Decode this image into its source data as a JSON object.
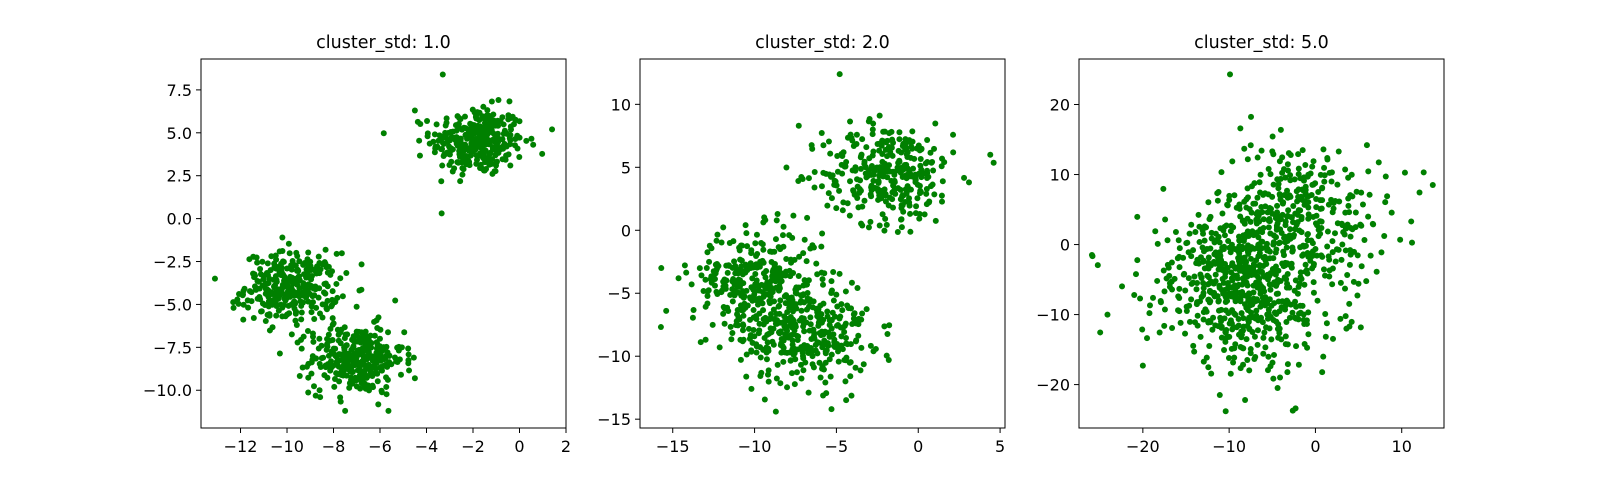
{
  "chart_data": [
    {
      "type": "scatter",
      "title": "cluster_std: 1.0",
      "xlim": [
        -13.7,
        2.0
      ],
      "ylim": [
        -12.2,
        9.3
      ],
      "xticks": [
        -12,
        -10,
        -8,
        -6,
        -4,
        -2,
        0,
        2
      ],
      "xtick_labels": [
        "−12",
        "−10",
        "−8",
        "−6",
        "−4",
        "−2",
        "0",
        "2"
      ],
      "yticks": [
        -10.0,
        -7.5,
        -5.0,
        -2.5,
        0.0,
        2.5,
        5.0,
        7.5
      ],
      "ytick_labels": [
        "−10.0",
        "−7.5",
        "−5.0",
        "−2.5",
        "0.0",
        "2.5",
        "5.0",
        "7.5"
      ],
      "series": [
        {
          "color": "#008000",
          "clusters": [
            {
              "center": [
                -1.8,
                4.5
              ],
              "std": 1.0,
              "n": 320
            },
            {
              "center": [
                -9.8,
                -4.0
              ],
              "std": 1.0,
              "n": 320
            },
            {
              "center": [
                -7.0,
                -8.2
              ],
              "std": 1.0,
              "n": 320
            }
          ],
          "points": [
            [
              -3.3,
              8.4
            ],
            [
              -4.5,
              6.3
            ],
            [
              1.4,
              5.2
            ],
            [
              -13.1,
              -3.5
            ],
            [
              -10.2,
              -1.1
            ],
            [
              -7.5,
              -11.2
            ],
            [
              -4.5,
              -9.3
            ],
            [
              -12.3,
              -5.2
            ],
            [
              -8.6,
              -10.0
            ]
          ]
        }
      ]
    },
    {
      "type": "scatter",
      "title": "cluster_std: 2.0",
      "xlim": [
        -17.0,
        5.3
      ],
      "ylim": [
        -15.7,
        13.6
      ],
      "xticks": [
        -15,
        -10,
        -5,
        0,
        5
      ],
      "xtick_labels": [
        "−15",
        "−10",
        "−5",
        "0",
        "5"
      ],
      "yticks": [
        -15,
        -10,
        -5,
        0,
        5,
        10
      ],
      "ytick_labels": [
        "−15",
        "−10",
        "−5",
        "0",
        "5",
        "10"
      ],
      "series": [
        {
          "color": "#008000",
          "clusters": [
            {
              "center": [
                -1.8,
                4.5
              ],
              "std": 2.0,
              "n": 320
            },
            {
              "center": [
                -9.8,
                -4.0
              ],
              "std": 2.0,
              "n": 320
            },
            {
              "center": [
                -7.0,
                -8.2
              ],
              "std": 2.0,
              "n": 320
            }
          ],
          "points": [
            [
              -4.8,
              12.4
            ],
            [
              4.4,
              6.0
            ],
            [
              -7.3,
              8.3
            ],
            [
              -15.7,
              -3.0
            ],
            [
              -15.4,
              -6.4
            ],
            [
              -8.7,
              -14.4
            ],
            [
              -5.3,
              -14.2
            ],
            [
              -1.8,
              -10.3
            ],
            [
              3.1,
              3.8
            ]
          ]
        }
      ]
    },
    {
      "type": "scatter",
      "title": "cluster_std: 5.0",
      "xlim": [
        -27.4,
        14.9
      ],
      "ylim": [
        -26.2,
        26.5
      ],
      "xticks": [
        -20,
        -10,
        0,
        10
      ],
      "xtick_labels": [
        "−20",
        "−10",
        "0",
        "10"
      ],
      "yticks": [
        -20,
        -10,
        0,
        10,
        20
      ],
      "ytick_labels": [
        "−20",
        "−10",
        "0",
        "10",
        "20"
      ],
      "series": [
        {
          "color": "#008000",
          "clusters": [
            {
              "center": [
                -1.8,
                4.5
              ],
              "std": 5.0,
              "n": 320
            },
            {
              "center": [
                -9.8,
                -4.0
              ],
              "std": 5.0,
              "n": 320
            },
            {
              "center": [
                -7.0,
                -8.2
              ],
              "std": 5.0,
              "n": 320
            }
          ],
          "points": [
            [
              -9.9,
              24.3
            ],
            [
              13.6,
              8.5
            ],
            [
              -25.9,
              -1.5
            ],
            [
              -10.4,
              -23.8
            ],
            [
              -2.3,
              -23.4
            ],
            [
              11.1,
              3.3
            ],
            [
              -20.0,
              -17.3
            ],
            [
              -24.1,
              -10.0
            ],
            [
              -8.7,
              16.6
            ]
          ]
        }
      ]
    }
  ]
}
